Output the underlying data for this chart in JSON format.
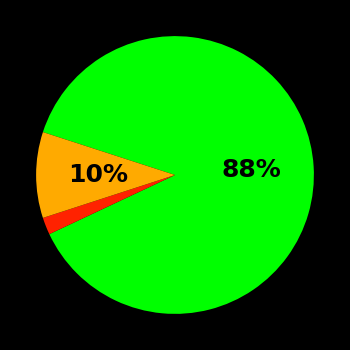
{
  "slices": [
    88,
    2,
    10
  ],
  "colors": [
    "#00ff00",
    "#ff2200",
    "#ffaa00"
  ],
  "labels": [
    "88%",
    "",
    "10%"
  ],
  "background_color": "#000000",
  "startangle": 162,
  "label_fontsize": 18,
  "label_fontweight": "bold",
  "label_color": "#000000",
  "label_radii": [
    0.55,
    0.0,
    0.55
  ]
}
